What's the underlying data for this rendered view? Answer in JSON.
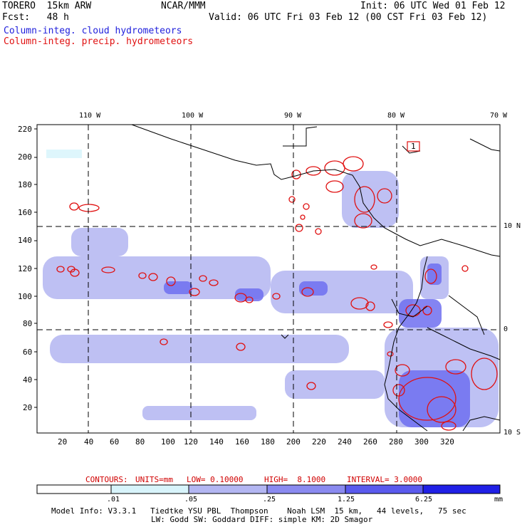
{
  "header": {
    "model": "TORERO  15km ARW",
    "center": "NCAR/MMM",
    "init": "Init: 06 UTC Wed 01 Feb 12",
    "fcst": "Fcst:   48 h",
    "valid": "Valid: 06 UTC Fri 03 Feb 12 (00 CST Fri 03 Feb 12)",
    "field1": "Column-integ. cloud hydrometeors",
    "field2": "Column-integ. precip. hydrometeors"
  },
  "map": {
    "lon_labels": [
      "110 W",
      "100 W",
      "90 W",
      "80 W",
      "70 W"
    ],
    "lat_labels": [
      "10 N",
      "0",
      "10 S"
    ],
    "y_ticks": [
      "220",
      "200",
      "180",
      "160",
      "140",
      "120",
      "100",
      "80",
      "60",
      "40",
      "20"
    ],
    "x_ticks": [
      "20",
      "40",
      "60",
      "80",
      "100",
      "120",
      "140",
      "160",
      "180",
      "200",
      "220",
      "240",
      "260",
      "280",
      "300",
      "320"
    ],
    "box_label": "1",
    "cloud_color": "#6f6ff0",
    "precip_color": "#e01010"
  },
  "contours": {
    "prefix": "CONTOURS:",
    "units": "UNITS=mm",
    "low": "LOW= 0.10000",
    "high": "HIGH=  8.1000",
    "interval": "INTERVAL= 3.0000"
  },
  "colorbar": {
    "labels": [
      ".01",
      ".05",
      ".25",
      "1.25",
      "6.25"
    ],
    "unit": "mm",
    "colors": [
      "#ffffff",
      "#d8f4fb",
      "#b3b6f2",
      "#8a8af0",
      "#5a5aee",
      "#2020e6"
    ]
  },
  "footer": {
    "line1": "Model Info: V3.3.1   Tiedtke YSU PBL  Thompson    Noah LSM  15 km,   44 levels,   75 sec",
    "line2": "LW: Godd SW: Goddard DIFF: simple KM: 2D Smagor"
  }
}
